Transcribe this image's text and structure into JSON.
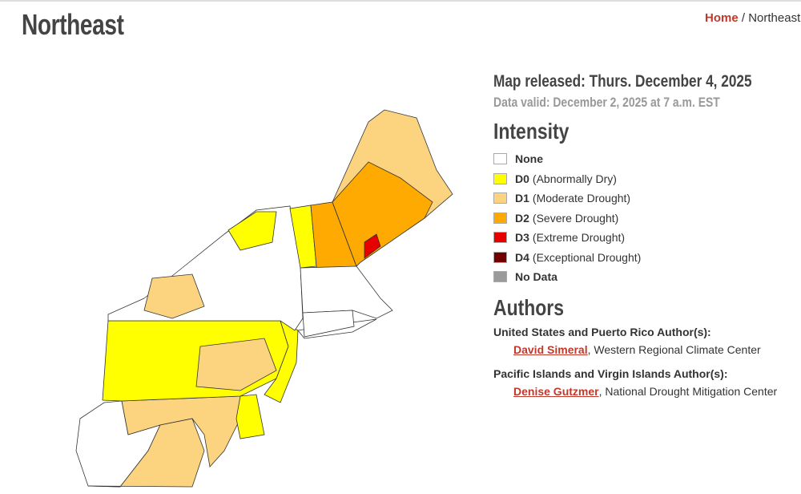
{
  "header": {
    "title": "Northeast",
    "breadcrumb": {
      "home": "Home",
      "separator": "/",
      "current": "Northeast"
    }
  },
  "release": {
    "released": "Map released: Thurs. December 4, 2025",
    "valid": "Data valid: December 2, 2025 at 7 a.m. EST"
  },
  "legend": {
    "title": "Intensity",
    "items": [
      {
        "code": "None",
        "color": "#ffffff"
      },
      {
        "code": "D0",
        "label": "(Abnormally Dry)",
        "color": "#ffff00"
      },
      {
        "code": "D1",
        "label": "(Moderate Drought)",
        "color": "#fcd37f"
      },
      {
        "code": "D2",
        "label": "(Severe Drought)",
        "color": "#ffaa00"
      },
      {
        "code": "D3",
        "label": "(Extreme Drought)",
        "color": "#e60000"
      },
      {
        "code": "D4",
        "label": "(Exceptional Drought)",
        "color": "#730000"
      },
      {
        "code": "No Data",
        "color": "#9b9b9b"
      }
    ]
  },
  "authors": {
    "title": "Authors",
    "groups": [
      {
        "heading": "United States and Puerto Rico Author(s):",
        "name": "David Simeral",
        "affiliation": ", Western Regional Climate Center"
      },
      {
        "heading": "Pacific Islands and Virgin Islands Author(s):",
        "name": "Denise Gutzmer",
        "affiliation": ", National Drought Mitigation Center"
      }
    ]
  }
}
